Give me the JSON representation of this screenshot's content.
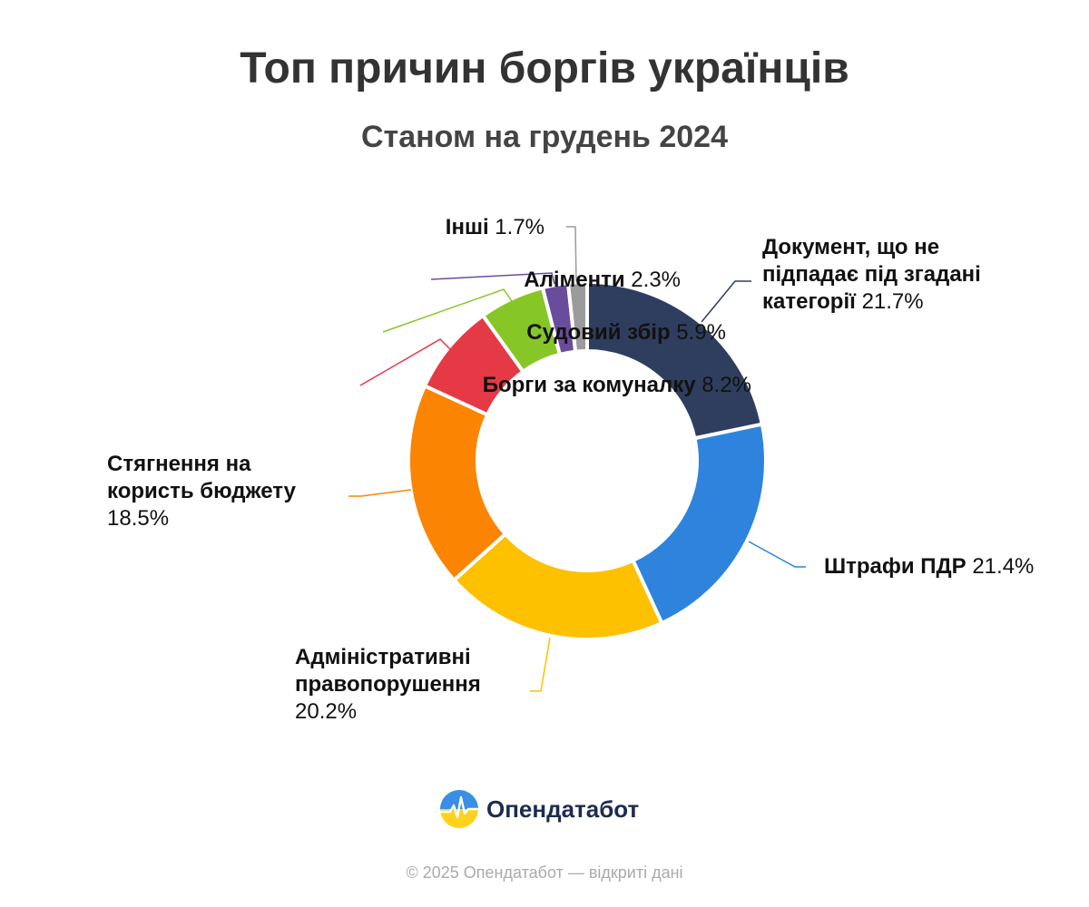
{
  "chart_data": {
    "type": "pie",
    "donut": true,
    "title": "Топ причин боргів українців",
    "subtitle": "Станом на грудень 2024",
    "slices": [
      {
        "label_lines": [
          "Документ, що не",
          "підпадає під згадані",
          "категорії"
        ],
        "value": 21.7,
        "value_text": "21.7%",
        "color": "#2f3e5e"
      },
      {
        "label_lines": [
          "Штрафи ПДР"
        ],
        "value": 21.4,
        "value_text": "21.4%",
        "color": "#2e84dc"
      },
      {
        "label_lines": [
          "Адміністративні",
          "правопорушення"
        ],
        "value": 20.2,
        "value_text": "20.2%",
        "color": "#fdc100"
      },
      {
        "label_lines": [
          "Стягнення на",
          "користь бюджету"
        ],
        "value": 18.5,
        "value_text": "18.5%",
        "color": "#fb8502"
      },
      {
        "label_lines": [
          "Борги за комуналку"
        ],
        "value": 8.2,
        "value_text": "8.2%",
        "color": "#e63946"
      },
      {
        "label_lines": [
          "Судовий збір"
        ],
        "value": 5.9,
        "value_text": "5.9%",
        "color": "#86c727"
      },
      {
        "label_lines": [
          "Аліменти"
        ],
        "value": 2.3,
        "value_text": "2.3%",
        "color": "#6a4c9c"
      },
      {
        "label_lines": [
          "Інші"
        ],
        "value": 1.7,
        "value_text": "1.7%",
        "color": "#9b9b9b"
      }
    ]
  },
  "brand": {
    "name": "Опендатабот",
    "icon": "opendatabot-logo-icon"
  },
  "footer": "© 2025 Опендатабот — відкриті дані"
}
